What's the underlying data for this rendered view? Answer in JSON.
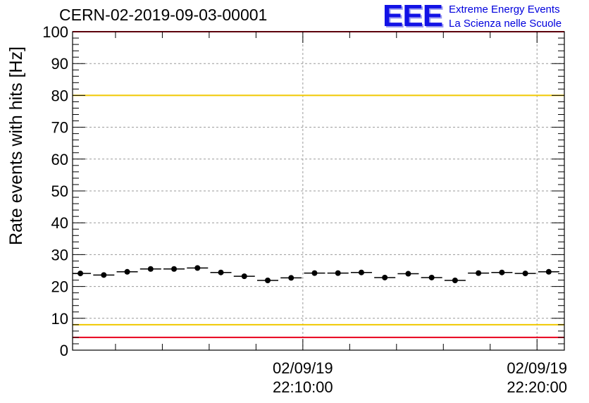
{
  "title": "CERN-02-2019-09-03-00001",
  "logo": {
    "mark": "EEE",
    "line1": "Extreme Energy Events",
    "line2": "La Scienza nelle Scuole",
    "color": "#1212e6"
  },
  "chart_data": {
    "type": "scatter",
    "title": "CERN-02-2019-09-03-00001",
    "ylabel": "Rate events with hits [Hz]",
    "xlabel": "",
    "ylim": [
      0,
      100
    ],
    "yticks": [
      "0",
      "10",
      "20",
      "30",
      "40",
      "50",
      "60",
      "70",
      "80",
      "90",
      "100"
    ],
    "xlim": [
      "02/09/19 22:00:10",
      "02/09/19 22:21:10"
    ],
    "xticks": [
      {
        "date": "02/09/19",
        "time": "22:10:00"
      },
      {
        "date": "02/09/19",
        "time": "22:20:00"
      }
    ],
    "grid": true,
    "reference_lines": [
      {
        "y": 100,
        "color": "#e8001c"
      },
      {
        "y": 80,
        "color": "#f0c800"
      },
      {
        "y": 8,
        "color": "#f0c800"
      },
      {
        "y": 4,
        "color": "#e8001c"
      }
    ],
    "series": [
      {
        "marker_color": "#000000",
        "x": [
          "22:00:30",
          "22:01:30",
          "22:02:30",
          "22:03:30",
          "22:04:30",
          "22:05:30",
          "22:06:30",
          "22:07:30",
          "22:08:30",
          "22:09:30",
          "22:10:30",
          "22:11:30",
          "22:12:30",
          "22:13:30",
          "22:14:30",
          "22:15:30",
          "22:16:30",
          "22:17:30",
          "22:18:30",
          "22:19:30",
          "22:20:30"
        ],
        "values": [
          24.1,
          23.6,
          24.6,
          25.5,
          25.5,
          25.8,
          24.4,
          23.2,
          21.9,
          22.7,
          24.2,
          24.2,
          24.4,
          22.8,
          24.0,
          22.8,
          21.9,
          24.2,
          24.4,
          24.1,
          24.6
        ]
      }
    ]
  }
}
